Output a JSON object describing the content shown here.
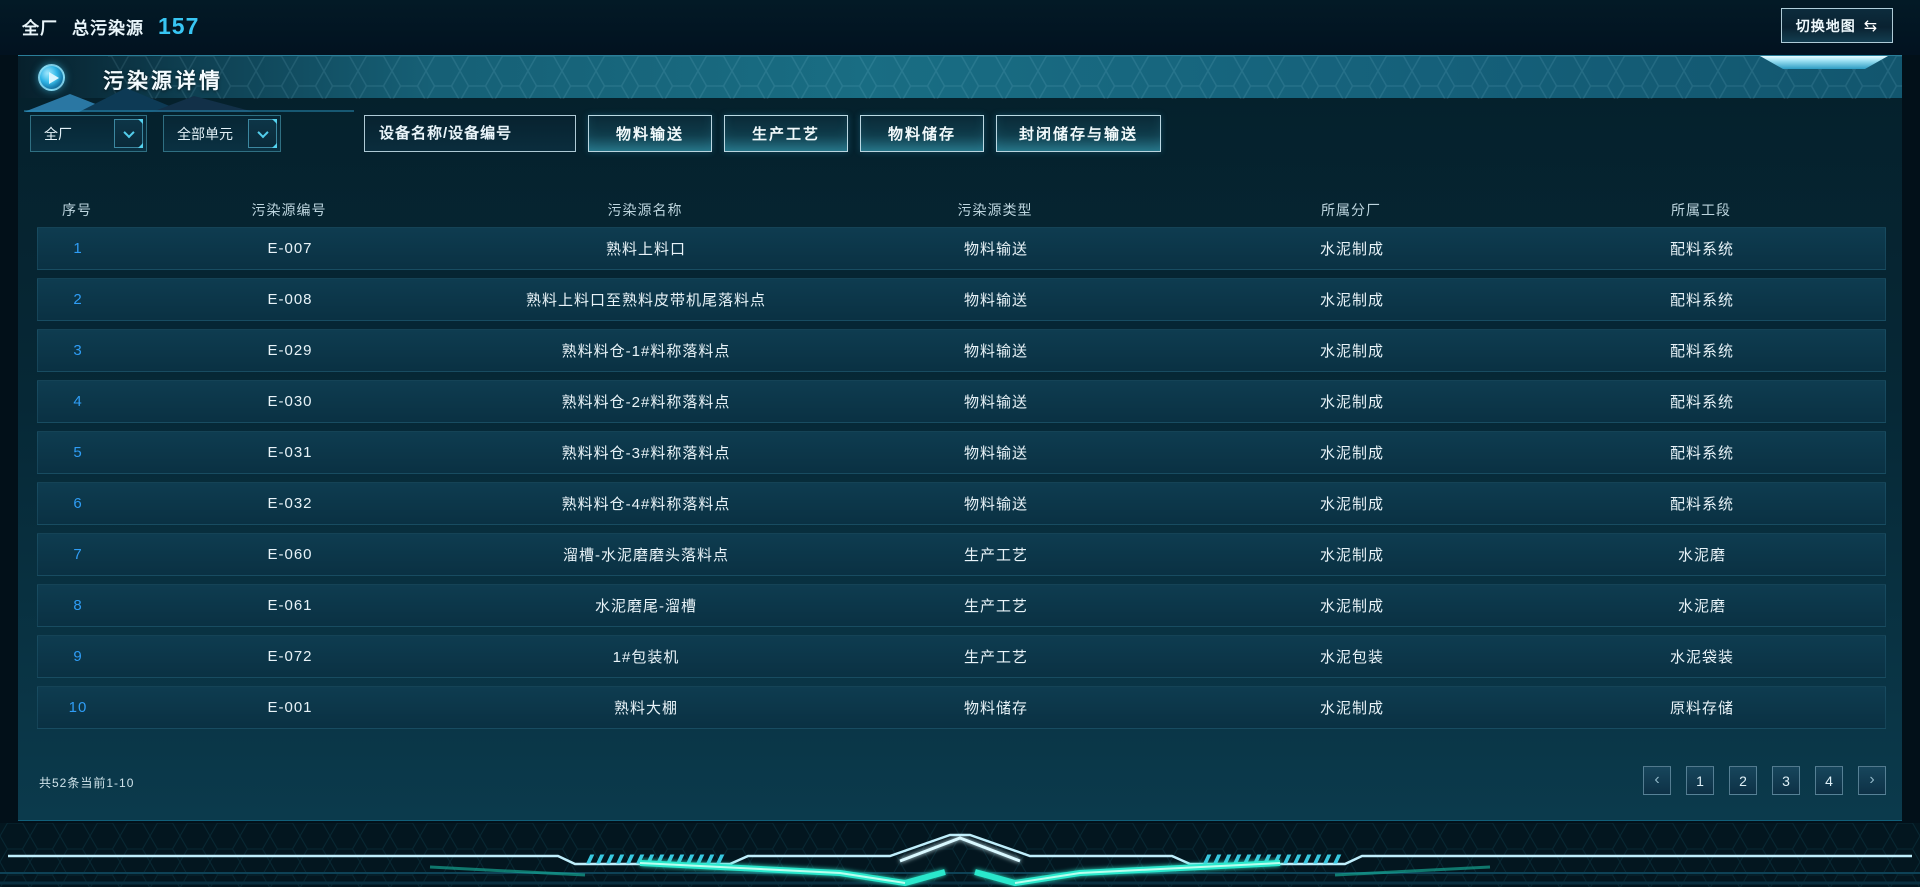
{
  "topbar": {
    "plant_label": "全厂",
    "total_label": "总污染源",
    "total_count": "157",
    "switch_map": {
      "label": "切换地图",
      "icon": "⇆"
    }
  },
  "panel": {
    "title": "污染源详情",
    "filters": {
      "plant_dropdown": {
        "value": "全厂"
      },
      "unit_dropdown": {
        "value": "全部单元"
      },
      "search": {
        "placeholder": "设备名称/设备编号",
        "icon": "search-icon"
      },
      "category_buttons": [
        {
          "label": "物料输送"
        },
        {
          "label": "生产工艺"
        },
        {
          "label": "物料储存"
        },
        {
          "label": "封闭储存与输送"
        }
      ]
    },
    "table": {
      "columns": [
        "序号",
        "污染源编号",
        "污染源名称",
        "污染源类型",
        "所属分厂",
        "所属工段"
      ],
      "rows": [
        {
          "index": "1",
          "code": "E-007",
          "name": "熟料上料口",
          "type": "物料输送",
          "factory": "水泥制成",
          "section": "配料系统"
        },
        {
          "index": "2",
          "code": "E-008",
          "name": "熟料上料口至熟料皮带机尾落料点",
          "type": "物料输送",
          "factory": "水泥制成",
          "section": "配料系统"
        },
        {
          "index": "3",
          "code": "E-029",
          "name": "熟料料仓-1#料称落料点",
          "type": "物料输送",
          "factory": "水泥制成",
          "section": "配料系统"
        },
        {
          "index": "4",
          "code": "E-030",
          "name": "熟料料仓-2#料称落料点",
          "type": "物料输送",
          "factory": "水泥制成",
          "section": "配料系统"
        },
        {
          "index": "5",
          "code": "E-031",
          "name": "熟料料仓-3#料称落料点",
          "type": "物料输送",
          "factory": "水泥制成",
          "section": "配料系统"
        },
        {
          "index": "6",
          "code": "E-032",
          "name": "熟料料仓-4#料称落料点",
          "type": "物料输送",
          "factory": "水泥制成",
          "section": "配料系统"
        },
        {
          "index": "7",
          "code": "E-060",
          "name": "溜槽-水泥磨磨头落料点",
          "type": "生产工艺",
          "factory": "水泥制成",
          "section": "水泥磨"
        },
        {
          "index": "8",
          "code": "E-061",
          "name": "水泥磨尾-溜槽",
          "type": "生产工艺",
          "factory": "水泥制成",
          "section": "水泥磨"
        },
        {
          "index": "9",
          "code": "E-072",
          "name": "1#包装机",
          "type": "生产工艺",
          "factory": "水泥包装",
          "section": "水泥袋装"
        },
        {
          "index": "10",
          "code": "E-001",
          "name": "熟料大棚",
          "type": "物料储存",
          "factory": "水泥制成",
          "section": "原料存储"
        }
      ]
    },
    "pagination": {
      "summary": "共52条当前1-10",
      "prev_icon": "‹",
      "next_icon": "›",
      "pages": [
        "1",
        "2",
        "3",
        "4"
      ]
    }
  },
  "colors": {
    "accent_cyan": "#38c6f4",
    "index_blue": "#2f9df5",
    "panel_teal": "#0b3a4c",
    "header_teal": "#196d83",
    "glow_teal": "#2ae8cc"
  }
}
